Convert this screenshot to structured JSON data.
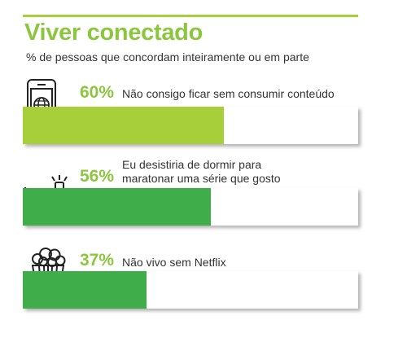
{
  "colors": {
    "title": "#8cc63f",
    "rule": "#a6cf3a",
    "percent": "#8cc63f",
    "bar_1": "#a6cf3a",
    "bar_2": "#3fae4a",
    "bar_3": "#3fae4a",
    "icon": "#222222",
    "track": "#ffffff"
  },
  "header": {
    "title": "Viver conectado",
    "subtitle": "% de pessoas que concordam inteiramente ou em parte"
  },
  "chart_data": {
    "type": "bar",
    "orientation": "horizontal",
    "title": "Viver conectado",
    "subtitle": "% de pessoas que concordam inteiramente ou em parte",
    "unit": "%",
    "xlim": [
      0,
      100
    ],
    "categories": [
      "Não consigo ficar sem consumir conteúdo",
      "Eu desistiria de dormir para maratonar uma série que gosto",
      "Não vivo sem Netflix"
    ],
    "values": [
      60,
      56,
      37
    ],
    "items": [
      {
        "percent_label": "60%",
        "label_lines": [
          "Não consigo ficar sem consumir conteúdo"
        ],
        "icon": "smartphone-globe-icon"
      },
      {
        "percent_label": "56%",
        "label_lines": [
          "Eu desistiria de dormir para",
          "maratonar uma série que gosto"
        ],
        "icon": "person-in-bed-watching-icon"
      },
      {
        "percent_label": "37%",
        "label_lines": [
          "Não vivo sem Netflix"
        ],
        "icon": "popcorn-icon"
      }
    ]
  }
}
